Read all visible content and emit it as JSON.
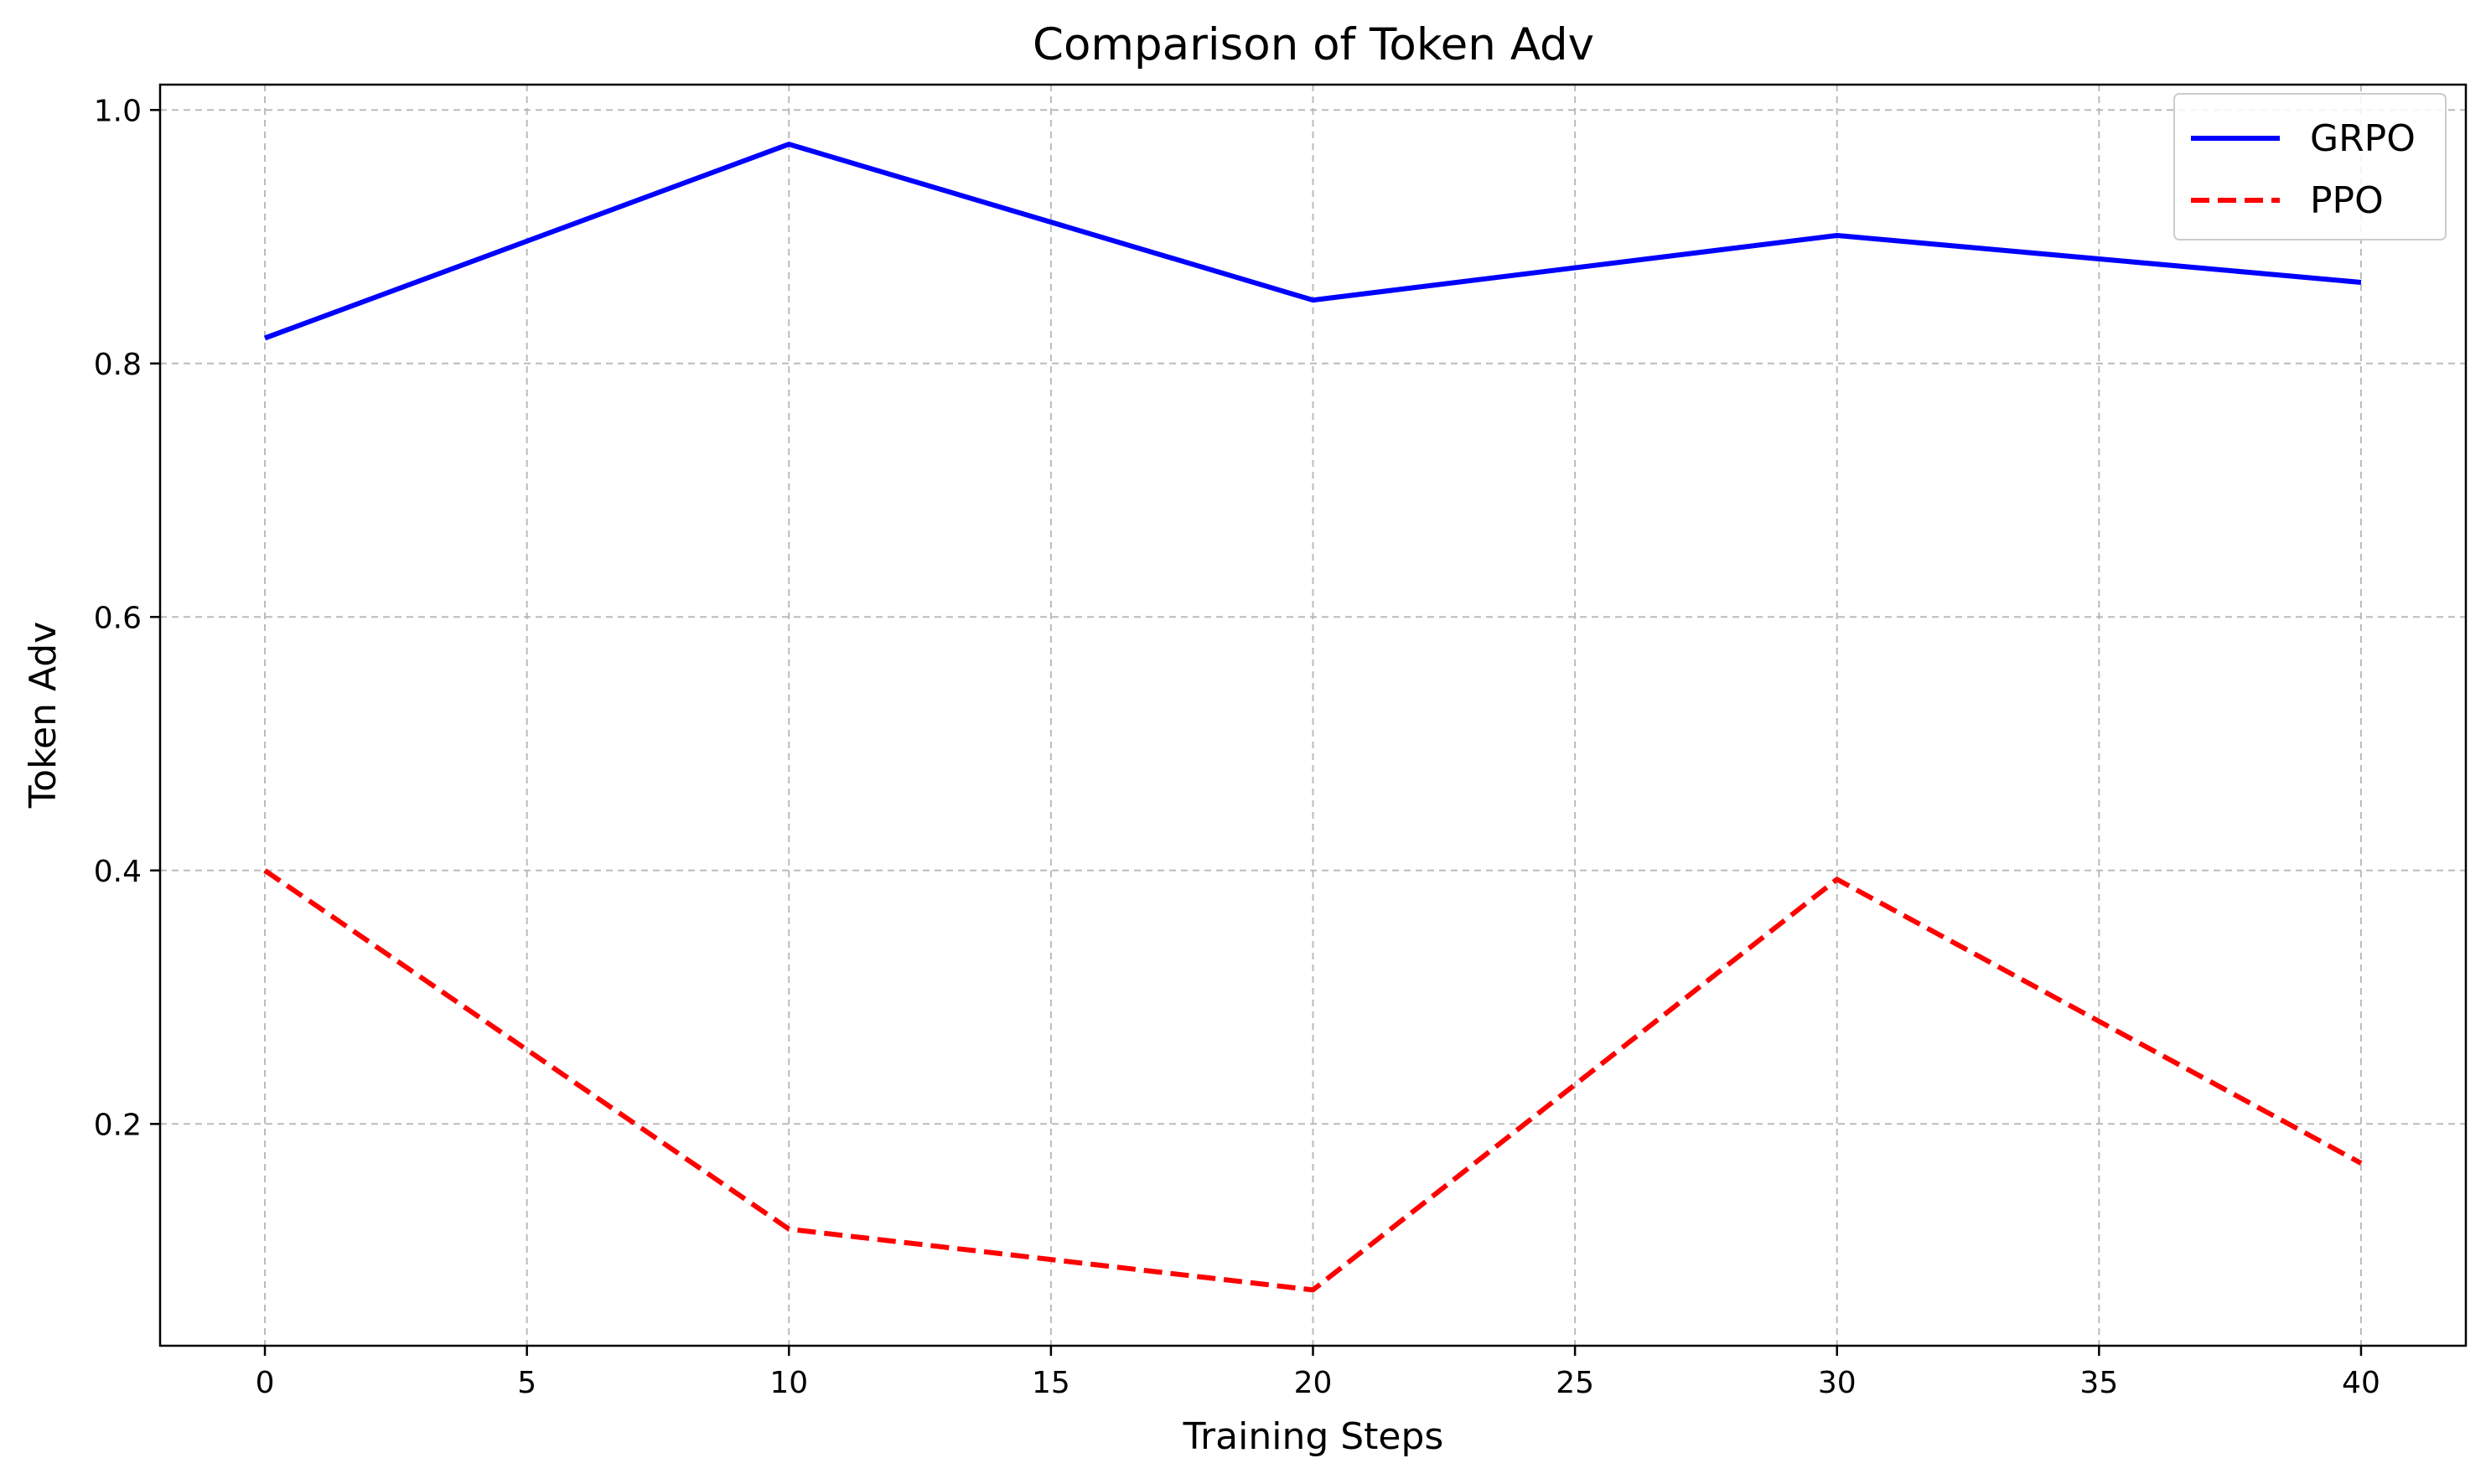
{
  "chart_data": {
    "type": "line",
    "title": "Comparison of Token Adv",
    "xlabel": "Training Steps",
    "ylabel": "Token Adv",
    "x": [
      0,
      10,
      20,
      30,
      40
    ],
    "xlim": [
      -2,
      42
    ],
    "ylim": [
      0.025,
      1.02
    ],
    "xticks": [
      0,
      5,
      10,
      15,
      20,
      25,
      30,
      35,
      40
    ],
    "xtick_labels": [
      "0",
      "5",
      "10",
      "15",
      "20",
      "25",
      "30",
      "35",
      "40"
    ],
    "yticks": [
      0.2,
      0.4,
      0.6,
      0.8,
      1.0
    ],
    "ytick_labels": [
      "0.2",
      "0.4",
      "0.6",
      "0.8",
      "1.0"
    ],
    "grid": true,
    "legend_position": "top-right",
    "series": [
      {
        "name": "GRPO",
        "values": [
          0.82,
          0.973,
          0.85,
          0.901,
          0.864
        ],
        "color": "#0000ff",
        "line_style": "solid"
      },
      {
        "name": "PPO",
        "values": [
          0.4,
          0.117,
          0.069,
          0.393,
          0.169
        ],
        "color": "#ff0000",
        "line_style": "dashed"
      }
    ]
  }
}
